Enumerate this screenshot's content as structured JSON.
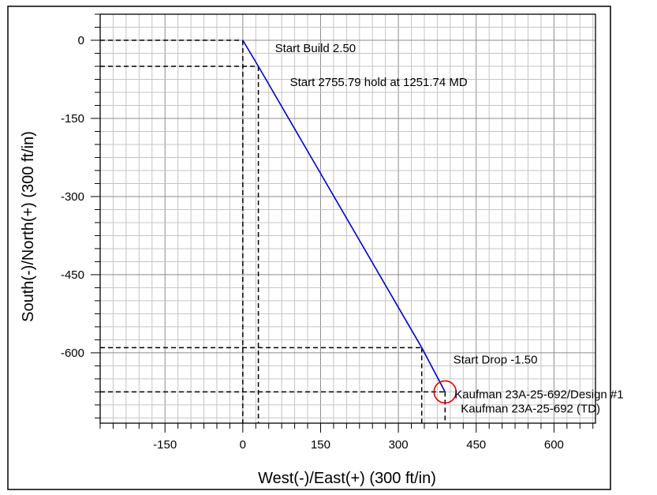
{
  "chart_data": {
    "type": "line",
    "title": "",
    "xlabel": "West(-)/East(+) (300 ft/in)",
    "ylabel": "South(-)/North(+) (300 ft/in)",
    "xlim": [
      -275,
      680
    ],
    "ylim": [
      -735,
      50
    ],
    "grid": true,
    "x_ticks": [
      -150,
      0,
      150,
      300,
      450,
      600
    ],
    "y_ticks": [
      0,
      -150,
      -300,
      -450,
      -600
    ],
    "x_tick_labels": [
      "-150",
      "0",
      "150",
      "300",
      "450",
      "600"
    ],
    "y_tick_labels": [
      "0",
      "-150",
      "-300",
      "-450",
      "-600"
    ],
    "series": [
      {
        "color": "#0000cc",
        "x": [
          0,
          30,
          345,
          390
        ],
        "y": [
          0,
          -50,
          -590,
          -675
        ]
      }
    ],
    "annotations": [
      {
        "text": "Start Build 2.50",
        "x": 30,
        "y": -50
      },
      {
        "text": "Start 2755.79 hold at 1251.74 MD",
        "x": 30,
        "y": -50
      },
      {
        "text": "Start Drop -1.50",
        "x": 345,
        "y": -590
      },
      {
        "text": "Kaufman 23A-25-692/Design #1",
        "x": 390,
        "y": -675
      },
      {
        "text": "Kaufman 23A-25-692 (TD)",
        "x": 390,
        "y": -675
      }
    ],
    "target": {
      "x": 390,
      "y": -675,
      "color": "#e00000"
    }
  }
}
